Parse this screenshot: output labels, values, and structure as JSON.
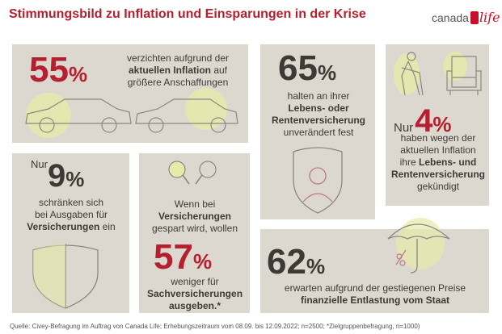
{
  "header": {
    "title": "Stimmungsbild zu Inflation und Einsparungen in der Krise",
    "logo_text": "canada",
    "logo_script": "life"
  },
  "panel1": {
    "number": "55",
    "percent": "%",
    "line1": "verzichten aufgrund der",
    "line2": "aktuellen Inflation",
    "line2b": "auf",
    "line3": "größere Anschaffungen"
  },
  "panel2": {
    "number": "65",
    "percent": "%",
    "line1": "halten an ihrer",
    "line2": "Lebens- oder",
    "line3": "Rentenversicherung",
    "line4": "unverändert fest"
  },
  "panel3": {
    "prefix": "Nur",
    "number": "4",
    "percent": "%",
    "line1": "haben wegen der",
    "line2": "aktuellen Inflation",
    "line3": "ihre",
    "line3b": "Lebens- und",
    "line4": "Rentenversicherung",
    "line5": "gekündigt"
  },
  "panel4": {
    "prefix": "Nur",
    "number": "9",
    "percent": "%",
    "line1": "schränken sich",
    "line2": "bei Ausgaben für",
    "line3": "Versicherungen",
    "line3b": "ein"
  },
  "panel5": {
    "line1": "Wenn bei",
    "line2": "Versicherungen",
    "line3": "gespart wird, wollen",
    "number": "57",
    "percent": "%",
    "line4": "weniger für",
    "line5": "Sachversicherungen",
    "line6": "ausgeben.*"
  },
  "panel6": {
    "number": "62",
    "percent": "%",
    "line1": "erwarten aufgrund der gestiegenen Preise",
    "line2": "finanzielle Entlastung vom Staat"
  },
  "footer": {
    "source": "Quelle: Civey-Befragung im Auftrag von Canada Life; Erhebungszeitraum vom 08.09. bis 12.09.2022; n=2500; *Zielgruppenbefragung, n=1000)"
  }
}
